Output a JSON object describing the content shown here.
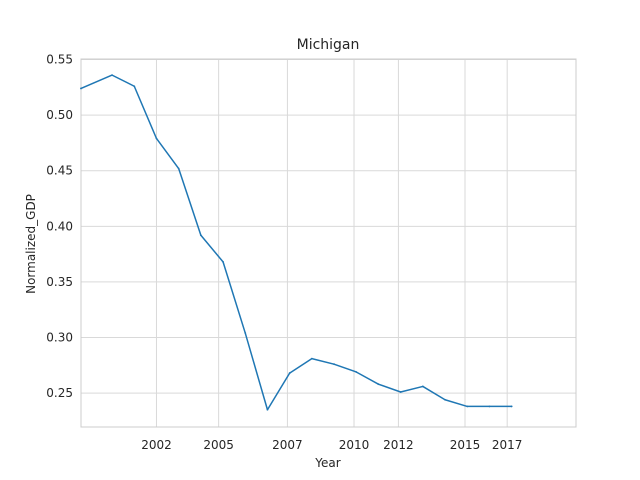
{
  "chart_data": {
    "type": "line",
    "title": "Michigan",
    "xlabel": "Year",
    "ylabel": "Normalized_GDP",
    "grid": true,
    "x_tick_labels": [
      "2002",
      "2005",
      "2007",
      "2010",
      "2012",
      "2015",
      "2017"
    ],
    "x_tick_values": [
      2002,
      2004.8,
      2007.9,
      2010.9,
      2012.9,
      2015.9,
      2017.8
    ],
    "y_tick_labels": [
      "0.25",
      "0.30",
      "0.35",
      "0.40",
      "0.45",
      "0.50",
      "0.55"
    ],
    "y_tick_values": [
      0.25,
      0.3,
      0.35,
      0.4,
      0.45,
      0.5,
      0.55
    ],
    "xlim": [
      1998.6,
      2020.9
    ],
    "ylim": [
      0.2195,
      0.5505
    ],
    "series": [
      {
        "color": "#1f77b4",
        "x": [
          1998.6,
          2000,
          2001,
          2002,
          2003,
          2004,
          2005,
          2006,
          2007,
          2008,
          2009,
          2010,
          2011,
          2012,
          2013,
          2014,
          2015,
          2016,
          2017,
          2018
        ],
        "y": [
          0.524,
          0.536,
          0.526,
          0.479,
          0.452,
          0.392,
          0.368,
          0.304,
          0.235,
          0.268,
          0.281,
          0.276,
          0.269,
          0.258,
          0.251,
          0.256,
          0.244,
          0.238,
          0.238,
          0.238
        ]
      }
    ]
  }
}
